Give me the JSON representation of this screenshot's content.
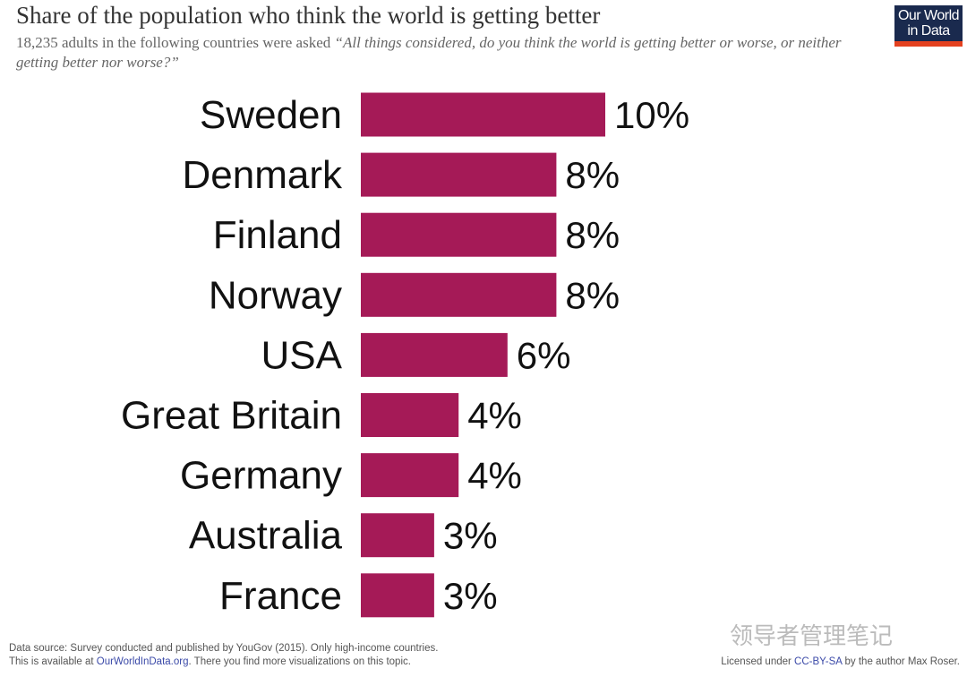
{
  "header": {
    "title": "Share of the population who think the world is getting better",
    "subtitle_prefix": "18,235 adults in the following countries were asked ",
    "subtitle_question": "“All things considered, do you think the world is getting better or worse, or neither getting better nor worse?”",
    "logo_line1": "Our World",
    "logo_line2": "in Data"
  },
  "chart_data": {
    "type": "bar",
    "orientation": "horizontal",
    "title": "Share of the population who think the world is getting better",
    "categories": [
      "Sweden",
      "Denmark",
      "Finland",
      "Norway",
      "USA",
      "Great Britain",
      "Germany",
      "Australia",
      "France"
    ],
    "values": [
      10,
      8,
      8,
      8,
      6,
      4,
      4,
      3,
      3
    ],
    "labels": [
      "10%",
      "8%",
      "8%",
      "8%",
      "6%",
      "4%",
      "4%",
      "3%",
      "3%"
    ],
    "unit": "%",
    "xlim": [
      0,
      10
    ],
    "grid": false,
    "bar_color": "#a51a57"
  },
  "footer": {
    "source": "Data source: Survey conducted and published by YouGov (2015). Only high-income countries.",
    "available_prefix": "This is available at ",
    "available_link": "OurWorldInData.org",
    "available_suffix": ". There you find more visualizations on this topic.",
    "license_prefix": "Licensed under ",
    "license_link": "CC-BY-SA",
    "license_suffix": " by the author Max Roser."
  },
  "watermark": "领导者管理笔记"
}
